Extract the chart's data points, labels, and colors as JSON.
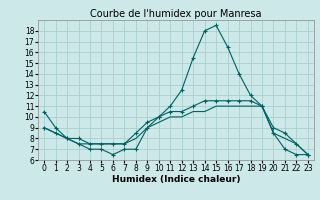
{
  "title": "Courbe de l'humidex pour Manresa",
  "xlabel": "Humidex (Indice chaleur)",
  "background_color": "#cce8e8",
  "grid_color": "#aacece",
  "line_color": "#006060",
  "xlim": [
    -0.5,
    23.5
  ],
  "ylim": [
    6,
    19
  ],
  "xticks": [
    0,
    1,
    2,
    3,
    4,
    5,
    6,
    7,
    8,
    9,
    10,
    11,
    12,
    13,
    14,
    15,
    16,
    17,
    18,
    19,
    20,
    21,
    22,
    23
  ],
  "yticks": [
    6,
    7,
    8,
    9,
    10,
    11,
    12,
    13,
    14,
    15,
    16,
    17,
    18
  ],
  "line1_x": [
    0,
    1,
    2,
    3,
    4,
    5,
    6,
    7,
    8,
    9,
    10,
    11,
    12,
    13,
    14,
    15,
    16,
    17,
    18,
    19,
    20,
    21,
    22,
    23
  ],
  "line1_y": [
    10.5,
    9.0,
    8.0,
    7.5,
    7.0,
    7.0,
    6.5,
    7.0,
    7.0,
    9.0,
    10.0,
    11.0,
    12.5,
    15.5,
    18.0,
    18.5,
    16.5,
    14.0,
    12.0,
    11.0,
    8.5,
    7.0,
    6.5,
    6.5
  ],
  "line2_x": [
    0,
    1,
    2,
    3,
    4,
    5,
    6,
    7,
    8,
    9,
    10,
    11,
    12,
    13,
    14,
    15,
    16,
    17,
    18,
    19,
    20,
    21,
    22,
    23
  ],
  "line2_y": [
    9.0,
    8.5,
    8.0,
    8.0,
    7.5,
    7.5,
    7.5,
    7.5,
    8.5,
    9.5,
    10.0,
    10.5,
    10.5,
    11.0,
    11.5,
    11.5,
    11.5,
    11.5,
    11.5,
    11.0,
    9.0,
    8.5,
    7.5,
    6.5
  ],
  "line3_x": [
    0,
    1,
    2,
    3,
    4,
    5,
    6,
    7,
    8,
    9,
    10,
    11,
    12,
    13,
    14,
    15,
    16,
    17,
    18,
    19,
    20,
    21,
    22,
    23
  ],
  "line3_y": [
    9.0,
    8.5,
    8.0,
    7.5,
    7.5,
    7.5,
    7.5,
    7.5,
    8.0,
    9.0,
    9.5,
    10.0,
    10.0,
    10.5,
    10.5,
    11.0,
    11.0,
    11.0,
    11.0,
    11.0,
    8.5,
    8.0,
    7.5,
    6.5
  ],
  "title_fontsize": 7,
  "xlabel_fontsize": 6.5,
  "tick_fontsize": 5.5
}
